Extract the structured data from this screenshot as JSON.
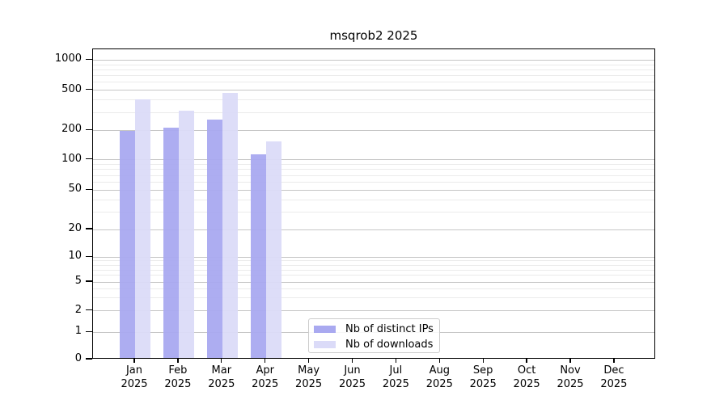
{
  "chart_data": {
    "type": "bar",
    "title": "msqrob2 2025",
    "xlabel": "",
    "ylabel": "",
    "yscale": "log-1-2-5 with compressed linear segment near 0",
    "ylim": [
      0,
      1270
    ],
    "grid": "horizontal major and minor gridlines",
    "legend_position": "inside plot, lower center",
    "categories": [
      {
        "month": "Jan",
        "year": "2025"
      },
      {
        "month": "Feb",
        "year": "2025"
      },
      {
        "month": "Mar",
        "year": "2025"
      },
      {
        "month": "Apr",
        "year": "2025"
      },
      {
        "month": "May",
        "year": "2025"
      },
      {
        "month": "Jun",
        "year": "2025"
      },
      {
        "month": "Jul",
        "year": "2025"
      },
      {
        "month": "Aug",
        "year": "2025"
      },
      {
        "month": "Sep",
        "year": "2025"
      },
      {
        "month": "Oct",
        "year": "2025"
      },
      {
        "month": "Nov",
        "year": "2025"
      },
      {
        "month": "Dec",
        "year": "2025"
      }
    ],
    "series": [
      {
        "name": "Nb of distinct IPs",
        "color": "#a9a9f0",
        "values": [
          190,
          205,
          245,
          110,
          null,
          null,
          null,
          null,
          null,
          null,
          null,
          null
        ]
      },
      {
        "name": "Nb of downloads",
        "color": "#dbdbf8",
        "values": [
          390,
          300,
          450,
          148,
          null,
          null,
          null,
          null,
          null,
          null,
          null,
          null
        ]
      }
    ],
    "yticks": [
      {
        "value": 1000,
        "label": "1000"
      },
      {
        "value": 500,
        "label": "500"
      },
      {
        "value": 200,
        "label": "200"
      },
      {
        "value": 100,
        "label": "100"
      },
      {
        "value": 50,
        "label": "50"
      },
      {
        "value": 20,
        "label": "20"
      },
      {
        "value": 10,
        "label": "10"
      },
      {
        "value": 5,
        "label": "5"
      },
      {
        "value": 2,
        "label": "2"
      },
      {
        "value": 1,
        "label": "1"
      },
      {
        "value": 0,
        "label": "0"
      }
    ]
  },
  "colors": {
    "background": "#ffffff",
    "spine": "#000000",
    "grid_major": "#c6c6c6",
    "grid_minor": "#ebebeb",
    "text": "#000000",
    "legend_border": "#cccccc"
  }
}
